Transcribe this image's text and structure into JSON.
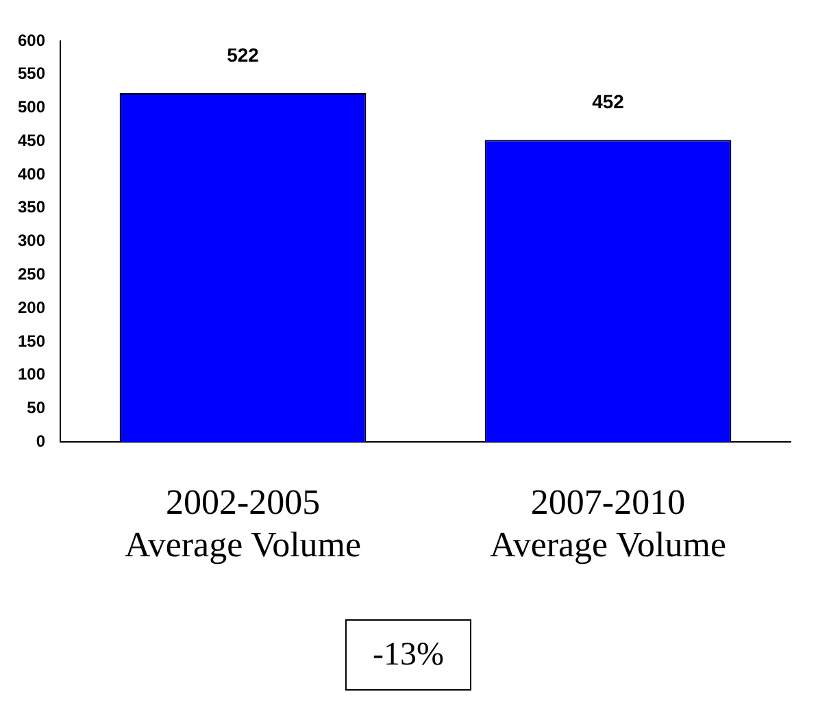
{
  "chart_data": {
    "type": "bar",
    "categories": [
      "2002-2005\nAverage Volume",
      "2007-2010\nAverage Volume"
    ],
    "values": [
      522,
      452
    ],
    "color": "#0000ff",
    "ylim": [
      0,
      600
    ],
    "yticks": [
      0,
      50,
      100,
      150,
      200,
      250,
      300,
      350,
      400,
      450,
      500,
      550,
      600
    ],
    "grid": false,
    "legend": false,
    "data_labels": true,
    "annotations": [
      "-13%"
    ]
  }
}
